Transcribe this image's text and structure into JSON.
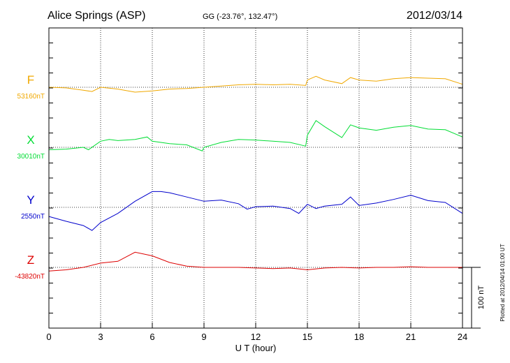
{
  "header": {
    "station": "Alice Springs (ASP)",
    "coords": "GG (-23.76°, 132.47°)",
    "date": "2012/03/14"
  },
  "footer": {
    "plotted": "Plotted at 2012/04/14 01:00 UT",
    "scale_label": "100 nT"
  },
  "colors": {
    "F": "#f0a800",
    "X": "#00dd33",
    "Y": "#0000cc",
    "Z": "#dd0000"
  },
  "chart_data": {
    "type": "line",
    "xlabel": "U T (hour)",
    "ylabel": "",
    "xlim": [
      0,
      24
    ],
    "x_ticks": [
      "0",
      "3",
      "6",
      "9",
      "12",
      "15",
      "18",
      "21",
      "24"
    ],
    "grid": true,
    "scale_bar_nT": 100,
    "series": [
      {
        "name": "F",
        "baseline_label": "53160nT",
        "baseline": 53160,
        "x": [
          0,
          1,
          2,
          2.5,
          3,
          4,
          5,
          6,
          7,
          8,
          9,
          10,
          11,
          12,
          13,
          14,
          14.9,
          15,
          15.5,
          16,
          17,
          17.5,
          18,
          19,
          20,
          21,
          22,
          23,
          24
        ],
        "values": [
          53160,
          53159,
          53155,
          53153,
          53160,
          53157,
          53152,
          53154,
          53157,
          53158,
          53160,
          53162,
          53164,
          53165,
          53164,
          53165,
          53163,
          53172,
          53178,
          53172,
          53166,
          53176,
          53172,
          53170,
          53174,
          53176,
          53175,
          53174,
          53165
        ]
      },
      {
        "name": "X",
        "baseline_label": "30010nT",
        "baseline": 30010,
        "x": [
          0,
          1,
          2,
          2.3,
          3,
          3.5,
          4,
          5,
          5.7,
          6,
          7,
          8,
          8.9,
          9,
          10,
          11,
          12,
          13,
          14,
          14.9,
          15,
          15.5,
          16,
          17,
          17.5,
          18,
          19,
          20,
          21,
          22,
          23,
          24
        ],
        "values": [
          30006,
          30007,
          30010,
          30006,
          30020,
          30023,
          30021,
          30023,
          30027,
          30020,
          30016,
          30014,
          30004,
          30010,
          30018,
          30023,
          30022,
          30020,
          30018,
          30012,
          30030,
          30054,
          30044,
          30026,
          30047,
          30042,
          30038,
          30043,
          30046,
          30040,
          30039,
          30027
        ]
      },
      {
        "name": "Y",
        "baseline_label": "2550nT",
        "baseline": 2550,
        "x": [
          0,
          1,
          2,
          2.5,
          3,
          4,
          5,
          6,
          6.5,
          7,
          8,
          9,
          10,
          11,
          11.5,
          12,
          13,
          14,
          14.5,
          15,
          15.5,
          16,
          17,
          17.5,
          18,
          19,
          20,
          21,
          22,
          23,
          24
        ],
        "values": [
          2535,
          2527,
          2520,
          2512,
          2525,
          2540,
          2560,
          2576,
          2576,
          2574,
          2567,
          2560,
          2562,
          2556,
          2547,
          2551,
          2552,
          2548,
          2540,
          2555,
          2548,
          2552,
          2555,
          2567,
          2553,
          2557,
          2563,
          2570,
          2561,
          2558,
          2540
        ]
      },
      {
        "name": "Z",
        "baseline_label": "-43820nT",
        "baseline": -43820,
        "x": [
          0,
          1,
          2,
          3,
          4,
          5,
          6,
          7,
          8,
          9,
          10,
          11,
          12,
          13,
          14,
          15,
          16,
          17,
          18,
          19,
          20,
          21,
          22,
          23,
          24
        ],
        "values": [
          -43826,
          -43824,
          -43820,
          -43813,
          -43810,
          -43795,
          -43801,
          -43812,
          -43818,
          -43820,
          -43820,
          -43820,
          -43821,
          -43822,
          -43821,
          -43824,
          -43821,
          -43820,
          -43821,
          -43820,
          -43820,
          -43819,
          -43820,
          -43820,
          -43820
        ]
      }
    ]
  }
}
